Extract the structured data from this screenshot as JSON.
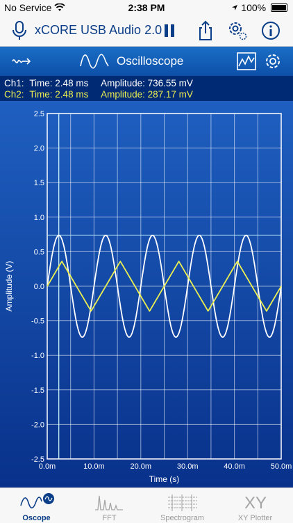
{
  "status_bar": {
    "carrier": "No Service",
    "time": "2:38 PM",
    "battery": "100%"
  },
  "header": {
    "title": "xCORE USB Audio 2.0"
  },
  "toolbar": {
    "mode_label": "Oscilloscope"
  },
  "readout": {
    "ch1": {
      "label": "Ch1:",
      "time": "Time: 2.48 ms",
      "amplitude": "Amplitude: 736.55 mV"
    },
    "ch2": {
      "label": "Ch2:",
      "time": "Time: 2.48 ms",
      "amplitude": "Amplitude: 287.17 mV"
    }
  },
  "colors": {
    "ch1": "#ffffff",
    "ch2": "#ecf050",
    "accent": "#0b3e88"
  },
  "chart_data": {
    "type": "line",
    "xlabel": "Time (s)",
    "ylabel": "Amplitude (V)",
    "xlim": [
      0,
      0.05
    ],
    "ylim": [
      -2.5,
      2.5
    ],
    "x_ticks": [
      0,
      0.01,
      0.02,
      0.03,
      0.04,
      0.05
    ],
    "x_tick_labels": [
      "0.0m",
      "10.0m",
      "20.0m",
      "30.0m",
      "40.0m",
      "50.0m"
    ],
    "y_ticks": [
      2.5,
      2.0,
      1.5,
      1.0,
      0.5,
      0.0,
      -0.5,
      -1.0,
      -1.5,
      -2.0,
      -2.5
    ],
    "y_tick_labels": [
      "2.5",
      "2.0",
      "1.5",
      "1.0",
      "0.5",
      "0.0",
      "-0.5",
      "-1.0",
      "-1.5",
      "-2.0",
      "-2.5"
    ],
    "grid": true,
    "cursor_x": 0.00248,
    "series": [
      {
        "waveform": "sine",
        "amplitude": 0.7366,
        "frequency_hz": 100,
        "color": "#ffffff"
      },
      {
        "waveform": "triangle",
        "amplitude": 0.36,
        "frequency_hz": 80,
        "color": "#ecf050"
      }
    ]
  },
  "tabs": [
    {
      "label": "Oscope",
      "icon": "sine-wave-icon",
      "active": true
    },
    {
      "label": "FFT",
      "icon": "fft-icon",
      "active": false
    },
    {
      "label": "Spectrogram",
      "icon": "spectrogram-icon",
      "active": false
    },
    {
      "label": "XY Plotter",
      "icon": "xy-icon",
      "active": false
    }
  ]
}
